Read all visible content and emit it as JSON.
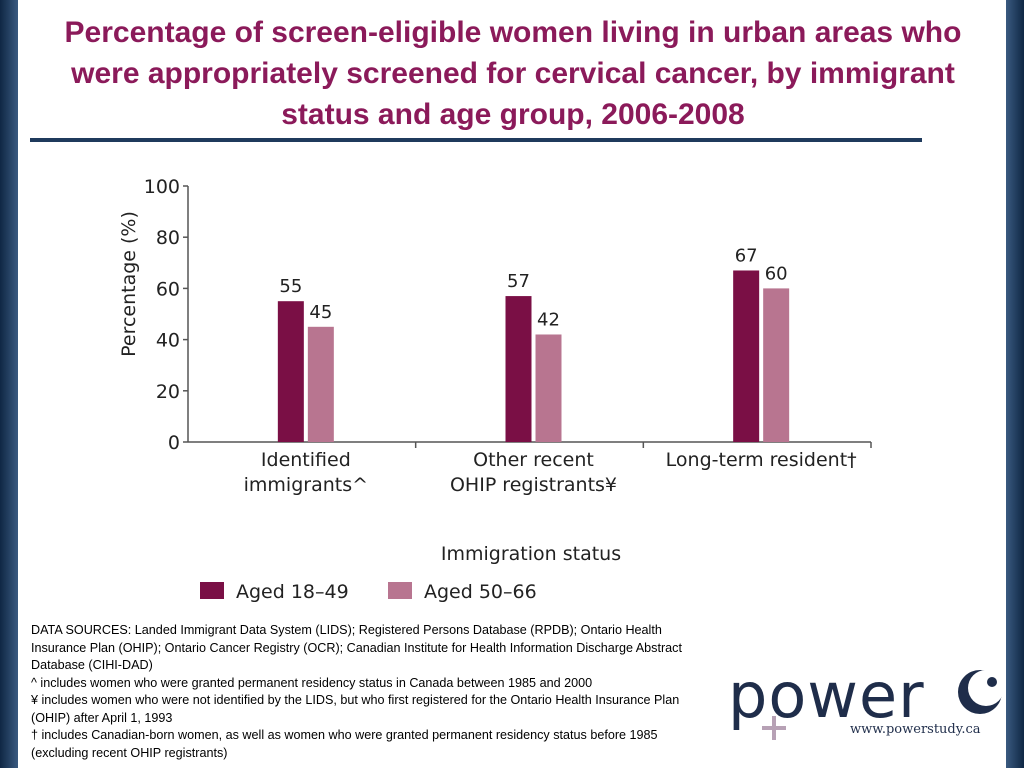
{
  "title": "Percentage of screen-eligible women living in urban areas who were appropriately screened for cervical cancer, by immigrant status and age group, 2006-2008",
  "colors": {
    "title": "#8b1a5a",
    "series1": "#7a0f45",
    "series2": "#b87590",
    "frame": "#1f3a5c"
  },
  "chart_data": {
    "type": "bar",
    "categories": [
      [
        "Identified",
        "immigrants^"
      ],
      [
        "Other recent",
        "OHIP registrants¥"
      ],
      [
        "Long-term resident†"
      ]
    ],
    "series": [
      {
        "name": "Aged 18–49",
        "values": [
          55,
          57,
          67
        ],
        "color": "#7a0f45"
      },
      {
        "name": "Aged 50–66",
        "values": [
          45,
          42,
          60
        ],
        "color": "#b87590"
      }
    ],
    "xlabel": "Immigration status",
    "ylabel": "Percentage (%)",
    "ylim": [
      0,
      100
    ],
    "yticks": [
      0,
      20,
      40,
      60,
      80,
      100
    ],
    "legend_position": "bottom"
  },
  "notes": [
    "DATA SOURCES: Landed Immigrant Data System (LIDS); Registered Persons Database (RPDB); Ontario Health Insurance Plan (OHIP); Ontario Cancer Registry (OCR); Canadian Institute for Health Information Discharge Abstract Database (CIHI-DAD)",
    "^ includes women who were granted permanent residency status in Canada between 1985 and 2000",
    "¥ includes women who were not identified by the LIDS, but who first registered for the Ontario Health Insurance Plan (OHIP) after April 1, 1993",
    "† includes Canadian-born women, as well as women who were granted permanent residency status before 1985 (excluding recent OHIP registrants)"
  ],
  "logo": {
    "word": "power",
    "url": "www.powerstudy.ca"
  }
}
